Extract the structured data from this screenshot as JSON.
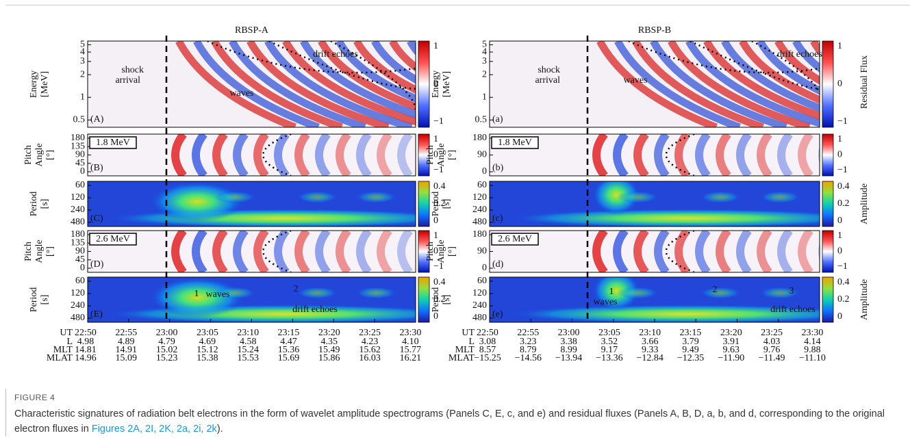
{
  "columns": [
    {
      "title": "RBSP-A",
      "panels": [
        {
          "ylabel": [
            "Energy",
            "[MeV]"
          ],
          "yticks": [
            "5",
            "4",
            "3",
            "2",
            "1",
            "0.5"
          ],
          "letter": "(A)",
          "colorbar": [
            "1",
            "0",
            "−1"
          ],
          "annotations": [
            "shock",
            "arrival",
            "drift echoes",
            "waves"
          ]
        },
        {
          "ylabel": [
            "Pitch",
            "Angle",
            "[°]"
          ],
          "yticks": [
            "180",
            "135",
            "90",
            "45",
            "0"
          ],
          "letter": "(B)",
          "tag": "1.8 MeV",
          "colorbar": [
            "1",
            "0",
            "−1"
          ]
        },
        {
          "ylabel": [
            "Period",
            "[s]"
          ],
          "yticks": [
            "60",
            "120",
            "240",
            "480"
          ],
          "letter": "(C)",
          "colorbar": [
            "0.4",
            "0.2",
            "0"
          ]
        },
        {
          "ylabel": [
            "Pitch",
            "Angle",
            "[°]"
          ],
          "yticks": [
            "180",
            "135",
            "90",
            "45",
            "0"
          ],
          "letter": "(D)",
          "tag": "2.6 MeV",
          "colorbar": [
            "1",
            "0",
            "−1"
          ]
        },
        {
          "ylabel": [
            "Period",
            "[s]"
          ],
          "yticks": [
            "60",
            "120",
            "240",
            "480"
          ],
          "letter": "(E)",
          "colorbar": [
            "0.4",
            "0.2",
            "0"
          ],
          "annotations": [
            "1",
            "waves",
            "2",
            "drift echoes"
          ]
        }
      ],
      "ephemeris": {
        "labels": [
          "UT",
          "L",
          "MLT",
          "MLAT"
        ],
        "rows": [
          [
            "22:50",
            "22:55",
            "23:00",
            "23:05",
            "23:10",
            "23:15",
            "23:20",
            "23:25",
            "23:30"
          ],
          [
            "4.98",
            "4.89",
            "4.79",
            "4.69",
            "4.58",
            "4.47",
            "4.35",
            "4.23",
            "4.10"
          ],
          [
            "14.81",
            "14.91",
            "15.02",
            "15.12",
            "15.24",
            "15.36",
            "15.49",
            "15.62",
            "15.77"
          ],
          [
            "14.96",
            "15.09",
            "15.23",
            "15.38",
            "15.53",
            "15.69",
            "15.86",
            "16.03",
            "16.21"
          ]
        ]
      }
    },
    {
      "title": "RBSP-B",
      "panels": [
        {
          "ylabel": [
            "Energy",
            "[MeV]"
          ],
          "yticks": [
            "5",
            "4",
            "3",
            "2",
            "1",
            "0.5"
          ],
          "letter": "(a)",
          "colorbar": [
            "1",
            "0",
            "−1"
          ],
          "side_label": "Residual Flux",
          "annotations": [
            "shock",
            "arrival",
            "waves",
            "drift echoes"
          ]
        },
        {
          "ylabel": [
            "Pitch",
            "Angle",
            "[°]"
          ],
          "yticks": [
            "180",
            "90",
            "0"
          ],
          "letter": "(b)",
          "tag": "1.8 MeV",
          "colorbar": [
            "1",
            "0",
            "−1"
          ]
        },
        {
          "ylabel": [
            "Period",
            "[s]"
          ],
          "yticks": [
            "60",
            "120",
            "240",
            "480"
          ],
          "letter": "(c)",
          "colorbar": [
            "0.4",
            "0.2",
            "0"
          ],
          "side_label": "Amplitude"
        },
        {
          "ylabel": [
            "Pitch",
            "Angle",
            "[°]"
          ],
          "yticks": [
            "180",
            "90",
            "0"
          ],
          "letter": "(d)",
          "tag": "2.6 MeV",
          "colorbar": [
            "1",
            "0",
            "−1"
          ]
        },
        {
          "ylabel": [
            "Period",
            "[s]"
          ],
          "yticks": [
            "60",
            "120",
            "240",
            "480"
          ],
          "letter": "(e)",
          "colorbar": [
            "0.4",
            "0.2",
            "0"
          ],
          "side_label": "Amplitude",
          "annotations": [
            "waves",
            "1",
            "2",
            "3",
            "drift echoes"
          ]
        }
      ],
      "ephemeris": {
        "labels": [
          "UT",
          "L",
          "MLT",
          "MLAT"
        ],
        "rows": [
          [
            "22:50",
            "22:55",
            "23:00",
            "23:05",
            "23:10",
            "23:15",
            "23:20",
            "23:25",
            "23:30"
          ],
          [
            "3.08",
            "3.23",
            "3.38",
            "3.52",
            "3.66",
            "3.79",
            "3.91",
            "4.03",
            "4.14"
          ],
          [
            "8.57",
            "8.79",
            "8.99",
            "9.17",
            "9.33",
            "9.49",
            "9.63",
            "9.76",
            "9.88"
          ],
          [
            "−15.25",
            "−14.56",
            "−13.94",
            "−13.36",
            "−12.84",
            "−12.35",
            "−11.90",
            "−11.49",
            "−11.10"
          ]
        ]
      }
    }
  ],
  "caption": {
    "label": "FIGURE 4",
    "text": "Characteristic signatures of radiation belt electrons in the form of wavelet amplitude spectrograms (Panels C, E, c, and e) and residual fluxes (Panels A, B, D, a, b, and d, corresponding to the original electron fluxes in ",
    "link": "Figures 2A, 2I, 2K, 2a, 2i, 2k",
    "end": ")."
  }
}
